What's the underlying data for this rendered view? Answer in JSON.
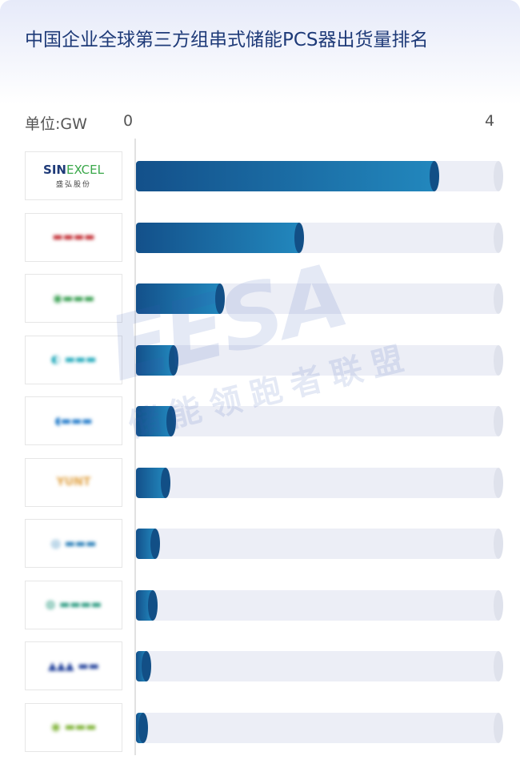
{
  "chart_data": {
    "type": "bar",
    "orientation": "horizontal",
    "title": "中国企业全球第三方组串式储能PCS器出货量排名",
    "unit_label": "单位:GW",
    "xlim": [
      0,
      4
    ],
    "tick_labels": [
      "0",
      "4"
    ],
    "categories": [
      "SINEXCEL 盛弘股份",
      "logo-2",
      "logo-3",
      "logo-4",
      "logo-5",
      "YUNT",
      "logo-7",
      "logo-8",
      "logo-9",
      "logo-10"
    ],
    "values": [
      3.33,
      1.85,
      0.98,
      0.47,
      0.44,
      0.38,
      0.26,
      0.24,
      0.17,
      0.13
    ],
    "grid": false,
    "bar_color": "#1b6aa5",
    "track_color": "#eceef6"
  },
  "logos": [
    {
      "text": "SINEXCEL",
      "sub": "盛弘股份",
      "color": "#1e3a78",
      "accent": "#3aa84a",
      "blurred": false
    },
    {
      "text": "▬▬▬▬",
      "color": "#c0262d",
      "blurred": true
    },
    {
      "text": "◉▬▬▬",
      "color": "#2e9a48",
      "blurred": true
    },
    {
      "text": "◐ ▬▬▬",
      "color": "#1aa6b8",
      "blurred": true
    },
    {
      "text": "◖▬▬▬",
      "color": "#1976c8",
      "blurred": true
    },
    {
      "text": "YUNT",
      "color": "#e0a040",
      "blurred": true
    },
    {
      "text": "◎ ▬▬▬",
      "color": "#2a7fb8",
      "blurred": true
    },
    {
      "text": "◍ ▬▬▬▬",
      "color": "#2a9a80",
      "blurred": true
    },
    {
      "text": "▲▲▲ ▬▬",
      "color": "#1f3f9a",
      "blurred": true
    },
    {
      "text": "◉ ▬▬▬",
      "color": "#7ab030",
      "blurred": true
    }
  ],
  "watermark": {
    "text": "EESA",
    "sub": "储能领跑者联盟"
  }
}
